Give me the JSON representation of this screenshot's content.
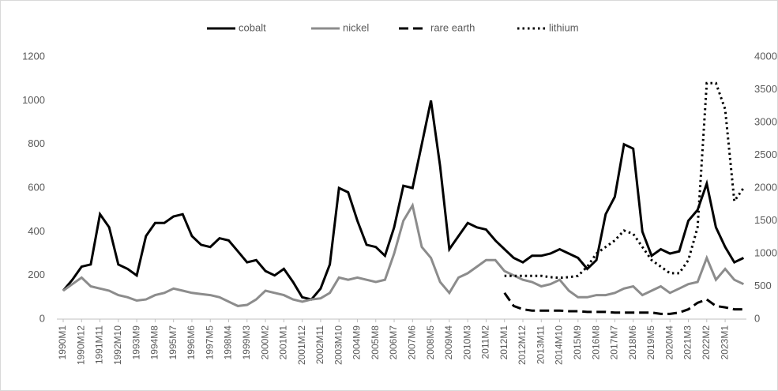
{
  "chart_data": {
    "type": "line",
    "categories": [
      "1990M1",
      null,
      "1990M12",
      null,
      "1991M11",
      null,
      "1992M10",
      null,
      "1993M9",
      null,
      "1994M8",
      null,
      "1995M7",
      null,
      "1996M6",
      null,
      "1997M5",
      null,
      "1998M4",
      null,
      "1999M3",
      null,
      "2000M2",
      null,
      "2001M1",
      null,
      "2001M12",
      null,
      "2002M11",
      null,
      "2003M10",
      null,
      "2004M9",
      null,
      "2005M8",
      null,
      "2006M7",
      null,
      "2007M6",
      null,
      "2008M5",
      null,
      "2009M4",
      null,
      "2010M3",
      null,
      "2011M2",
      null,
      "2012M1",
      null,
      "2012M12",
      null,
      "2013M11",
      null,
      "2014M10",
      null,
      "2015M9",
      null,
      "2016M8",
      null,
      "2017M7",
      null,
      "2018M6",
      null,
      "2019M5",
      null,
      "2020M4",
      null,
      "2021M3",
      null,
      "2022M2",
      null,
      "2023M1",
      null,
      null
    ],
    "series": [
      {
        "name": "cobalt",
        "color": "#000000",
        "dash": "solid",
        "width": 3,
        "values": [
          130,
          180,
          240,
          250,
          480,
          420,
          250,
          230,
          200,
          380,
          440,
          440,
          470,
          480,
          380,
          340,
          330,
          370,
          360,
          310,
          260,
          270,
          220,
          200,
          230,
          170,
          100,
          90,
          140,
          250,
          600,
          580,
          450,
          340,
          330,
          290,
          420,
          610,
          600,
          800,
          1000,
          700,
          320,
          380,
          440,
          420,
          410,
          360,
          320,
          280,
          260,
          290,
          290,
          300,
          320,
          300,
          280,
          230,
          270,
          480,
          560,
          800,
          780,
          400,
          290,
          320,
          300,
          310,
          450,
          500,
          620,
          420,
          330,
          260,
          280
        ]
      },
      {
        "name": "nickel",
        "color": "#8c8c8c",
        "dash": "solid",
        "width": 3,
        "values": [
          130,
          160,
          190,
          150,
          140,
          130,
          110,
          100,
          85,
          90,
          110,
          120,
          140,
          130,
          120,
          115,
          110,
          100,
          80,
          60,
          65,
          90,
          130,
          120,
          110,
          90,
          80,
          90,
          95,
          120,
          190,
          180,
          190,
          180,
          170,
          180,
          300,
          450,
          520,
          330,
          280,
          170,
          120,
          190,
          210,
          240,
          270,
          270,
          220,
          200,
          180,
          170,
          150,
          160,
          180,
          130,
          100,
          100,
          110,
          110,
          120,
          140,
          150,
          110,
          130,
          150,
          120,
          140,
          160,
          170,
          280,
          180,
          230,
          180,
          160
        ]
      },
      {
        "name": "rare earth",
        "color": "#000000",
        "dash": "dashed",
        "width": 3,
        "axis": "y2",
        "values": [
          null,
          null,
          null,
          null,
          null,
          null,
          null,
          null,
          null,
          null,
          null,
          null,
          null,
          null,
          null,
          null,
          null,
          null,
          null,
          null,
          null,
          null,
          null,
          null,
          null,
          null,
          null,
          null,
          null,
          null,
          null,
          null,
          null,
          null,
          null,
          null,
          null,
          null,
          null,
          null,
          null,
          null,
          null,
          null,
          null,
          null,
          null,
          null,
          400,
          200,
          150,
          130,
          130,
          130,
          130,
          120,
          120,
          110,
          110,
          110,
          100,
          100,
          100,
          100,
          100,
          80,
          80,
          100,
          150,
          250,
          300,
          200,
          180,
          150,
          150
        ]
      },
      {
        "name": "lithium",
        "color": "#000000",
        "dash": "dotted",
        "width": 3,
        "axis": "y2",
        "values": [
          null,
          null,
          null,
          null,
          null,
          null,
          null,
          null,
          null,
          null,
          null,
          null,
          null,
          null,
          null,
          null,
          null,
          null,
          null,
          null,
          null,
          null,
          null,
          null,
          null,
          null,
          null,
          null,
          null,
          null,
          null,
          null,
          null,
          null,
          null,
          null,
          null,
          null,
          null,
          null,
          null,
          null,
          null,
          null,
          null,
          null,
          null,
          null,
          660,
          660,
          660,
          660,
          660,
          640,
          630,
          640,
          660,
          800,
          1000,
          1100,
          1200,
          1350,
          1300,
          1100,
          900,
          800,
          700,
          700,
          900,
          1400,
          3600,
          3600,
          3200,
          1800,
          2000
        ]
      }
    ],
    "ylim": [
      0,
      1200
    ],
    "yticks": [
      0,
      200,
      400,
      600,
      800,
      1000,
      1200
    ],
    "y2lim": [
      0,
      4000
    ],
    "y2ticks": [
      0,
      500,
      1000,
      1500,
      2000,
      2500,
      3000,
      3500,
      4000
    ],
    "legend": "top",
    "grid": false
  }
}
